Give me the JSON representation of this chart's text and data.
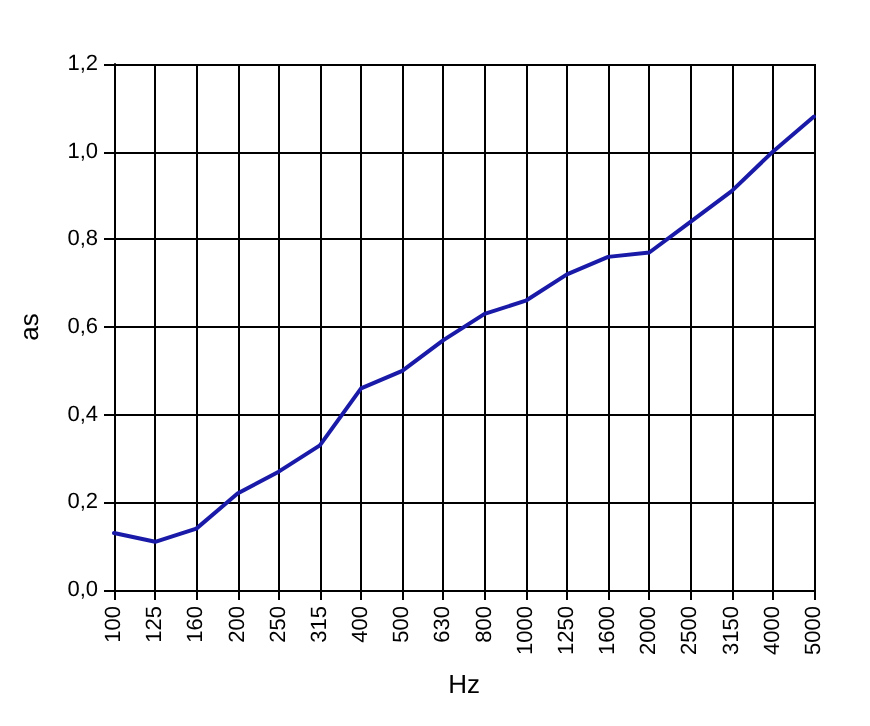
{
  "chart_data": {
    "type": "line",
    "xlabel": "Hz",
    "ylabel": "as",
    "categories": [
      "100",
      "125",
      "160",
      "200",
      "250",
      "315",
      "400",
      "500",
      "630",
      "800",
      "1000",
      "1250",
      "1600",
      "2000",
      "2500",
      "3150",
      "4000",
      "5000"
    ],
    "series": [
      {
        "color": "#1a1aa8",
        "values": [
          0.13,
          0.11,
          0.14,
          0.22,
          0.27,
          0.33,
          0.46,
          0.5,
          0.57,
          0.63,
          0.66,
          0.72,
          0.76,
          0.77,
          0.84,
          0.91,
          1.0,
          1.08
        ]
      }
    ],
    "ylim": [
      0,
      1.2
    ],
    "yticks": [
      {
        "value": 0,
        "label": "0,0"
      },
      {
        "value": 0.2,
        "label": "0,2"
      },
      {
        "value": 0.4,
        "label": "0,4"
      },
      {
        "value": 0.6,
        "label": "0,6"
      },
      {
        "value": 0.8,
        "label": "0,8"
      },
      {
        "value": 1,
        "label": "1,0"
      },
      {
        "value": 1.2,
        "label": "1,2"
      }
    ],
    "grid": true,
    "marker": "none",
    "line_style": "solid"
  }
}
